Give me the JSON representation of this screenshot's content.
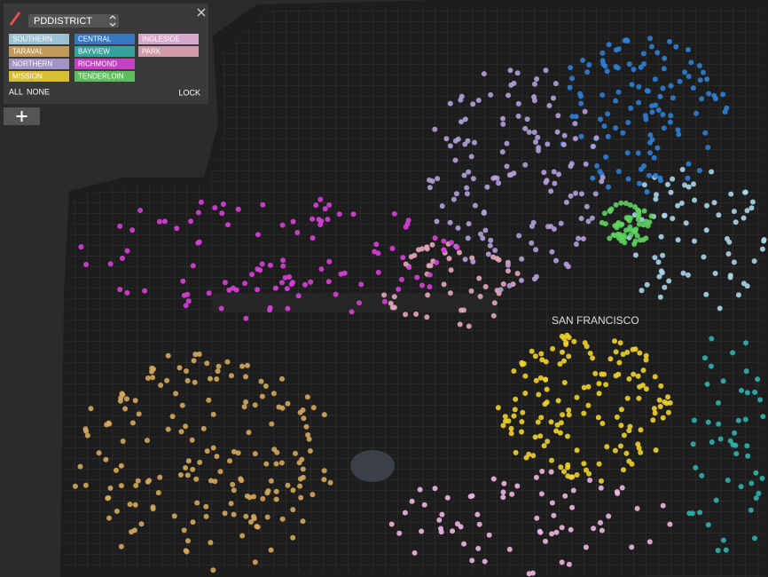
{
  "control": {
    "dropdown": "PDDISTRICT",
    "districts": [
      {
        "name": "SOUTHERN",
        "color": "#a9d6ea"
      },
      {
        "name": "CENTRAL",
        "color": "#2f80d6"
      },
      {
        "name": "INGLESIDE",
        "color": "#f0b6e2"
      },
      {
        "name": "TARAVAL",
        "color": "#d6a85c"
      },
      {
        "name": "BAYVIEW",
        "color": "#2fb3ad"
      },
      {
        "name": "PARK",
        "color": "#e6a9b9"
      },
      {
        "name": "NORTHERN",
        "color": "#b5a0dc"
      },
      {
        "name": "RICHMOND",
        "color": "#d940d9"
      },
      {
        "name": "MISSION",
        "color": "#f0d22e"
      },
      {
        "name": "TENDERLOIN",
        "color": "#5fd35f"
      }
    ],
    "all": "ALL",
    "none": "NONE",
    "lock": "LOCK"
  },
  "map": {
    "city_label": "SAN FRANCISCO"
  }
}
